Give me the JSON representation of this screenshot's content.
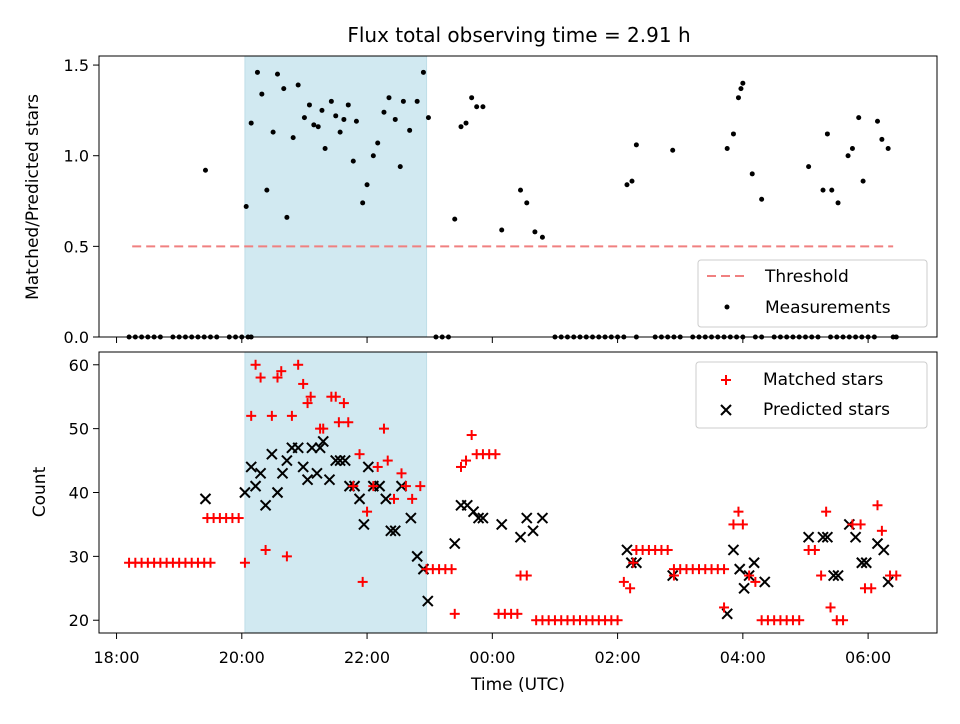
{
  "chart_data": {
    "title": "Flux total observing time = 2.91 h",
    "type": "scatter",
    "shaded_span_hours": [
      20.05,
      22.95
    ],
    "shade_color": "#add8e6",
    "x_axis": {
      "label": "Time (UTC)",
      "range_hours": [
        17.72,
        31.1
      ],
      "ticks": [
        {
          "v": 18,
          "label": "18:00"
        },
        {
          "v": 20,
          "label": "20:00"
        },
        {
          "v": 22,
          "label": "22:00"
        },
        {
          "v": 24,
          "label": "00:00"
        },
        {
          "v": 26,
          "label": "02:00"
        },
        {
          "v": 28,
          "label": "04:00"
        },
        {
          "v": 30,
          "label": "06:00"
        }
      ]
    },
    "top_panel": {
      "ylabel": "Matched/Predicted stars",
      "ylim": [
        0,
        1.55
      ],
      "yticks": [
        {
          "v": 0,
          "label": "0.0"
        },
        {
          "v": 0.5,
          "label": "0.5"
        },
        {
          "v": 1,
          "label": "1.0"
        },
        {
          "v": 1.5,
          "label": "1.5"
        }
      ],
      "threshold": {
        "y": 0.5,
        "x_range": [
          18.25,
          30.4
        ],
        "color": "#f08080"
      },
      "legend": {
        "position": "lower right",
        "threshold_label": "Threshold",
        "measurements_label": "Measurements"
      },
      "zero_points_x": [
        18.2,
        18.3,
        18.4,
        18.5,
        18.6,
        18.7,
        18.9,
        19.0,
        19.1,
        19.2,
        19.3,
        19.4,
        19.5,
        19.6,
        19.8,
        19.9,
        20.0,
        20.1,
        20.15,
        23.1,
        23.2,
        23.3,
        25.0,
        25.1,
        25.2,
        25.3,
        25.4,
        25.5,
        25.6,
        25.7,
        25.8,
        25.9,
        26.0,
        26.1,
        26.3,
        26.6,
        26.7,
        26.8,
        26.9,
        27.0,
        27.2,
        27.3,
        27.4,
        27.5,
        27.6,
        27.7,
        27.8,
        27.9,
        28.0,
        28.2,
        28.3,
        28.5,
        28.6,
        28.7,
        28.8,
        28.9,
        29.0,
        29.1,
        29.2,
        29.4,
        29.5,
        29.6,
        29.7,
        29.8,
        29.9,
        30.0,
        30.1,
        30.4,
        30.45
      ],
      "measurements": [
        {
          "x": 19.42,
          "y": 0.92
        },
        {
          "x": 20.07,
          "y": 0.72
        },
        {
          "x": 20.15,
          "y": 1.18
        },
        {
          "x": 20.25,
          "y": 1.46
        },
        {
          "x": 20.32,
          "y": 1.34
        },
        {
          "x": 20.4,
          "y": 0.81
        },
        {
          "x": 20.5,
          "y": 1.13
        },
        {
          "x": 20.57,
          "y": 1.45
        },
        {
          "x": 20.67,
          "y": 1.37
        },
        {
          "x": 20.72,
          "y": 0.66
        },
        {
          "x": 20.82,
          "y": 1.1
        },
        {
          "x": 20.9,
          "y": 1.39
        },
        {
          "x": 21.0,
          "y": 1.21
        },
        {
          "x": 21.08,
          "y": 1.28
        },
        {
          "x": 21.15,
          "y": 1.17
        },
        {
          "x": 21.22,
          "y": 1.16
        },
        {
          "x": 21.28,
          "y": 1.25
        },
        {
          "x": 21.33,
          "y": 1.04
        },
        {
          "x": 21.43,
          "y": 1.3
        },
        {
          "x": 21.5,
          "y": 1.22
        },
        {
          "x": 21.57,
          "y": 1.13
        },
        {
          "x": 21.63,
          "y": 1.2
        },
        {
          "x": 21.7,
          "y": 1.28
        },
        {
          "x": 21.78,
          "y": 0.97
        },
        {
          "x": 21.83,
          "y": 1.19
        },
        {
          "x": 21.93,
          "y": 0.74
        },
        {
          "x": 22.0,
          "y": 0.84
        },
        {
          "x": 22.1,
          "y": 1.0
        },
        {
          "x": 22.17,
          "y": 1.07
        },
        {
          "x": 22.27,
          "y": 1.24
        },
        {
          "x": 22.35,
          "y": 1.32
        },
        {
          "x": 22.45,
          "y": 1.2
        },
        {
          "x": 22.53,
          "y": 0.94
        },
        {
          "x": 22.58,
          "y": 1.3
        },
        {
          "x": 22.68,
          "y": 1.14
        },
        {
          "x": 22.8,
          "y": 1.3
        },
        {
          "x": 22.9,
          "y": 1.46
        },
        {
          "x": 22.98,
          "y": 1.21
        },
        {
          "x": 23.4,
          "y": 0.65
        },
        {
          "x": 23.5,
          "y": 1.16
        },
        {
          "x": 23.58,
          "y": 1.18
        },
        {
          "x": 23.67,
          "y": 1.32
        },
        {
          "x": 23.75,
          "y": 1.27
        },
        {
          "x": 23.85,
          "y": 1.27
        },
        {
          "x": 24.15,
          "y": 0.59
        },
        {
          "x": 24.45,
          "y": 0.81
        },
        {
          "x": 24.55,
          "y": 0.74
        },
        {
          "x": 24.68,
          "y": 0.58
        },
        {
          "x": 24.8,
          "y": 0.55
        },
        {
          "x": 26.15,
          "y": 0.84
        },
        {
          "x": 26.23,
          "y": 0.86
        },
        {
          "x": 26.3,
          "y": 1.06
        },
        {
          "x": 26.88,
          "y": 1.03
        },
        {
          "x": 27.75,
          "y": 1.04
        },
        {
          "x": 27.85,
          "y": 1.12
        },
        {
          "x": 27.93,
          "y": 1.32
        },
        {
          "x": 28.0,
          "y": 1.4
        },
        {
          "x": 27.97,
          "y": 1.37
        },
        {
          "x": 28.15,
          "y": 0.9
        },
        {
          "x": 28.3,
          "y": 0.76
        },
        {
          "x": 29.05,
          "y": 0.94
        },
        {
          "x": 29.28,
          "y": 0.81
        },
        {
          "x": 29.35,
          "y": 1.12
        },
        {
          "x": 29.42,
          "y": 0.81
        },
        {
          "x": 29.52,
          "y": 0.74
        },
        {
          "x": 29.68,
          "y": 1.0
        },
        {
          "x": 29.75,
          "y": 1.04
        },
        {
          "x": 29.85,
          "y": 1.21
        },
        {
          "x": 29.92,
          "y": 0.86
        },
        {
          "x": 30.15,
          "y": 1.19
        },
        {
          "x": 30.22,
          "y": 1.09
        },
        {
          "x": 30.32,
          "y": 1.04
        }
      ]
    },
    "bottom_panel": {
      "ylabel": "Count",
      "ylim": [
        18,
        62
      ],
      "yticks": [
        {
          "v": 20,
          "label": "20"
        },
        {
          "v": 30,
          "label": "30"
        },
        {
          "v": 40,
          "label": "40"
        },
        {
          "v": 50,
          "label": "50"
        },
        {
          "v": 60,
          "label": "60"
        }
      ],
      "legend": {
        "position": "upper right",
        "matched_label": "Matched stars",
        "predicted_label": "Predicted stars"
      },
      "matched_color": "#ff0000",
      "predicted_color": "#000000",
      "matched_runs": [
        {
          "y": 29,
          "from": 18.2,
          "to": 19.5,
          "step": 0.1
        },
        {
          "y": 36,
          "from": 19.45,
          "to": 20.0,
          "step": 0.1
        },
        {
          "y": 28,
          "from": 22.95,
          "to": 23.4,
          "step": 0.1
        },
        {
          "y": 46,
          "from": 23.85,
          "to": 24.1,
          "step": 0.1
        },
        {
          "y": 21,
          "from": 24.1,
          "to": 24.4,
          "step": 0.1
        },
        {
          "y": 20,
          "from": 24.7,
          "to": 26.0,
          "step": 0.1
        },
        {
          "y": 31,
          "from": 26.3,
          "to": 26.8,
          "step": 0.1
        },
        {
          "y": 28,
          "from": 26.9,
          "to": 27.7,
          "step": 0.1
        },
        {
          "y": 20,
          "from": 28.3,
          "to": 28.9,
          "step": 0.1
        }
      ],
      "matched": [
        {
          "x": 20.05,
          "y": 29
        },
        {
          "x": 20.15,
          "y": 52
        },
        {
          "x": 20.22,
          "y": 60
        },
        {
          "x": 20.3,
          "y": 58
        },
        {
          "x": 20.38,
          "y": 31
        },
        {
          "x": 20.48,
          "y": 52
        },
        {
          "x": 20.57,
          "y": 58
        },
        {
          "x": 20.63,
          "y": 59
        },
        {
          "x": 20.72,
          "y": 30
        },
        {
          "x": 20.8,
          "y": 52
        },
        {
          "x": 20.9,
          "y": 60
        },
        {
          "x": 20.98,
          "y": 57
        },
        {
          "x": 21.05,
          "y": 54
        },
        {
          "x": 21.1,
          "y": 55
        },
        {
          "x": 21.25,
          "y": 50
        },
        {
          "x": 21.3,
          "y": 50
        },
        {
          "x": 21.43,
          "y": 55
        },
        {
          "x": 21.5,
          "y": 55
        },
        {
          "x": 21.55,
          "y": 51
        },
        {
          "x": 21.63,
          "y": 54
        },
        {
          "x": 21.7,
          "y": 51
        },
        {
          "x": 21.78,
          "y": 41
        },
        {
          "x": 21.88,
          "y": 46
        },
        {
          "x": 21.93,
          "y": 26
        },
        {
          "x": 22.0,
          "y": 37
        },
        {
          "x": 22.1,
          "y": 41
        },
        {
          "x": 22.17,
          "y": 44
        },
        {
          "x": 22.27,
          "y": 50
        },
        {
          "x": 22.33,
          "y": 45
        },
        {
          "x": 22.43,
          "y": 39
        },
        {
          "x": 22.55,
          "y": 43
        },
        {
          "x": 22.62,
          "y": 41
        },
        {
          "x": 22.72,
          "y": 39
        },
        {
          "x": 22.85,
          "y": 41
        },
        {
          "x": 23.4,
          "y": 21
        },
        {
          "x": 23.5,
          "y": 44
        },
        {
          "x": 23.58,
          "y": 45
        },
        {
          "x": 23.67,
          "y": 49
        },
        {
          "x": 23.75,
          "y": 46
        },
        {
          "x": 24.45,
          "y": 27
        },
        {
          "x": 24.55,
          "y": 27
        },
        {
          "x": 26.1,
          "y": 26
        },
        {
          "x": 26.2,
          "y": 25
        },
        {
          "x": 26.25,
          "y": 29
        },
        {
          "x": 26.9,
          "y": 27
        },
        {
          "x": 27.7,
          "y": 22
        },
        {
          "x": 27.85,
          "y": 35
        },
        {
          "x": 27.93,
          "y": 37
        },
        {
          "x": 28.0,
          "y": 35
        },
        {
          "x": 28.1,
          "y": 27
        },
        {
          "x": 28.2,
          "y": 26
        },
        {
          "x": 29.05,
          "y": 31
        },
        {
          "x": 29.15,
          "y": 31
        },
        {
          "x": 29.25,
          "y": 27
        },
        {
          "x": 29.33,
          "y": 37
        },
        {
          "x": 29.4,
          "y": 22
        },
        {
          "x": 29.5,
          "y": 20
        },
        {
          "x": 29.6,
          "y": 20
        },
        {
          "x": 29.75,
          "y": 35
        },
        {
          "x": 29.88,
          "y": 35
        },
        {
          "x": 29.95,
          "y": 25
        },
        {
          "x": 30.05,
          "y": 25
        },
        {
          "x": 30.15,
          "y": 38
        },
        {
          "x": 30.22,
          "y": 34
        },
        {
          "x": 30.35,
          "y": 27
        },
        {
          "x": 30.45,
          "y": 27
        }
      ],
      "predicted": [
        {
          "x": 19.42,
          "y": 39
        },
        {
          "x": 20.05,
          "y": 40
        },
        {
          "x": 20.15,
          "y": 44
        },
        {
          "x": 20.22,
          "y": 41
        },
        {
          "x": 20.3,
          "y": 43
        },
        {
          "x": 20.38,
          "y": 38
        },
        {
          "x": 20.48,
          "y": 46
        },
        {
          "x": 20.57,
          "y": 40
        },
        {
          "x": 20.65,
          "y": 43
        },
        {
          "x": 20.72,
          "y": 45
        },
        {
          "x": 20.8,
          "y": 47
        },
        {
          "x": 20.9,
          "y": 47
        },
        {
          "x": 20.98,
          "y": 44
        },
        {
          "x": 21.05,
          "y": 42
        },
        {
          "x": 21.12,
          "y": 47
        },
        {
          "x": 21.2,
          "y": 43
        },
        {
          "x": 21.25,
          "y": 47
        },
        {
          "x": 21.3,
          "y": 48
        },
        {
          "x": 21.4,
          "y": 42
        },
        {
          "x": 21.5,
          "y": 45
        },
        {
          "x": 21.57,
          "y": 45
        },
        {
          "x": 21.65,
          "y": 45
        },
        {
          "x": 21.72,
          "y": 41
        },
        {
          "x": 21.8,
          "y": 41
        },
        {
          "x": 21.88,
          "y": 39
        },
        {
          "x": 21.95,
          "y": 35
        },
        {
          "x": 22.02,
          "y": 44
        },
        {
          "x": 22.1,
          "y": 41
        },
        {
          "x": 22.2,
          "y": 41
        },
        {
          "x": 22.3,
          "y": 39
        },
        {
          "x": 22.38,
          "y": 34
        },
        {
          "x": 22.45,
          "y": 34
        },
        {
          "x": 22.55,
          "y": 41
        },
        {
          "x": 22.7,
          "y": 36
        },
        {
          "x": 22.8,
          "y": 30
        },
        {
          "x": 22.9,
          "y": 28
        },
        {
          "x": 22.97,
          "y": 23
        },
        {
          "x": 23.4,
          "y": 32
        },
        {
          "x": 23.5,
          "y": 38
        },
        {
          "x": 23.6,
          "y": 38
        },
        {
          "x": 23.7,
          "y": 37
        },
        {
          "x": 23.78,
          "y": 36
        },
        {
          "x": 23.85,
          "y": 36
        },
        {
          "x": 24.15,
          "y": 35
        },
        {
          "x": 24.45,
          "y": 33
        },
        {
          "x": 24.55,
          "y": 36
        },
        {
          "x": 24.65,
          "y": 34
        },
        {
          "x": 24.8,
          "y": 36
        },
        {
          "x": 26.15,
          "y": 31
        },
        {
          "x": 26.22,
          "y": 29
        },
        {
          "x": 26.3,
          "y": 29
        },
        {
          "x": 26.88,
          "y": 27
        },
        {
          "x": 27.75,
          "y": 21
        },
        {
          "x": 27.85,
          "y": 31
        },
        {
          "x": 27.95,
          "y": 28
        },
        {
          "x": 28.02,
          "y": 25
        },
        {
          "x": 28.1,
          "y": 27
        },
        {
          "x": 28.18,
          "y": 29
        },
        {
          "x": 28.35,
          "y": 26
        },
        {
          "x": 29.05,
          "y": 33
        },
        {
          "x": 29.28,
          "y": 33
        },
        {
          "x": 29.35,
          "y": 33
        },
        {
          "x": 29.45,
          "y": 27
        },
        {
          "x": 29.52,
          "y": 27
        },
        {
          "x": 29.7,
          "y": 35
        },
        {
          "x": 29.8,
          "y": 33
        },
        {
          "x": 29.9,
          "y": 29
        },
        {
          "x": 29.97,
          "y": 29
        },
        {
          "x": 30.15,
          "y": 32
        },
        {
          "x": 30.25,
          "y": 31
        },
        {
          "x": 30.32,
          "y": 26
        }
      ]
    }
  }
}
